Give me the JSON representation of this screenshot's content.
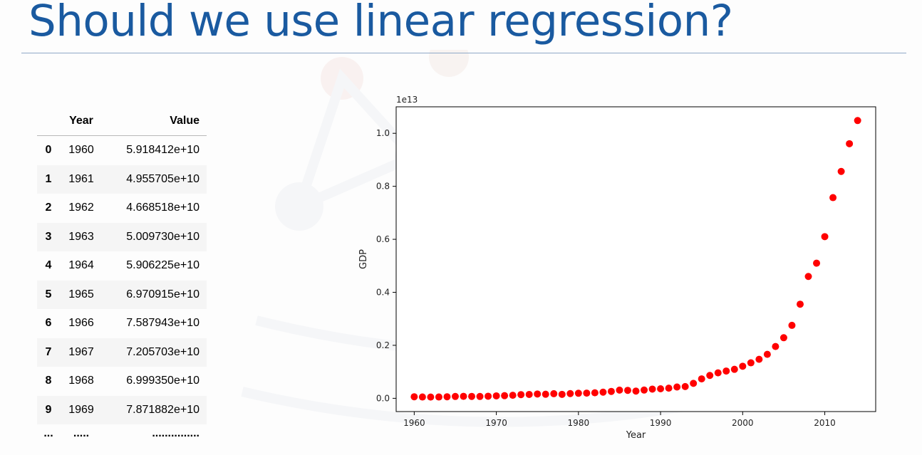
{
  "slide": {
    "title": "Should we use linear regression?"
  },
  "table": {
    "columns": [
      "",
      "Year",
      "Value"
    ],
    "rows": [
      {
        "idx": "0",
        "year": "1960",
        "value": "5.918412e+10"
      },
      {
        "idx": "1",
        "year": "1961",
        "value": "4.955705e+10"
      },
      {
        "idx": "2",
        "year": "1962",
        "value": "4.668518e+10"
      },
      {
        "idx": "3",
        "year": "1963",
        "value": "5.009730e+10"
      },
      {
        "idx": "4",
        "year": "1964",
        "value": "5.906225e+10"
      },
      {
        "idx": "5",
        "year": "1965",
        "value": "6.970915e+10"
      },
      {
        "idx": "6",
        "year": "1966",
        "value": "7.587943e+10"
      },
      {
        "idx": "7",
        "year": "1967",
        "value": "7.205703e+10"
      },
      {
        "idx": "8",
        "year": "1968",
        "value": "6.999350e+10"
      },
      {
        "idx": "9",
        "year": "1969",
        "value": "7.871882e+10"
      }
    ],
    "ellipsis": {
      "idx": "...",
      "year": ".....",
      "value": "..............."
    }
  },
  "chart_data": {
    "type": "scatter",
    "title": "",
    "xlabel": "Year",
    "ylabel": "GDP",
    "offset_label": "1e13",
    "xlim": [
      1957.8,
      2016.2
    ],
    "ylim": [
      -0.05,
      1.1
    ],
    "xticks": [
      1960,
      1970,
      1980,
      1990,
      2000,
      2010
    ],
    "yticks": [
      0.0,
      0.2,
      0.4,
      0.6,
      0.8,
      1.0
    ],
    "ytick_labels": [
      "0.0",
      "0.2",
      "0.4",
      "0.6",
      "0.8",
      "1.0"
    ],
    "marker_color": "#ff0000",
    "grid": false,
    "x": [
      1960,
      1961,
      1962,
      1963,
      1964,
      1965,
      1966,
      1967,
      1968,
      1969,
      1970,
      1971,
      1972,
      1973,
      1974,
      1975,
      1976,
      1977,
      1978,
      1979,
      1980,
      1981,
      1982,
      1983,
      1984,
      1985,
      1986,
      1987,
      1988,
      1989,
      1990,
      1991,
      1992,
      1993,
      1994,
      1995,
      1996,
      1997,
      1998,
      1999,
      2000,
      2001,
      2002,
      2003,
      2004,
      2005,
      2006,
      2007,
      2008,
      2009,
      2010,
      2011,
      2012,
      2013,
      2014
    ],
    "y": [
      0.0059,
      0.005,
      0.0047,
      0.005,
      0.0059,
      0.007,
      0.0076,
      0.0072,
      0.007,
      0.0079,
      0.0092,
      0.01,
      0.0114,
      0.0139,
      0.0146,
      0.0163,
      0.0154,
      0.0174,
      0.0149,
      0.0178,
      0.0191,
      0.0196,
      0.0209,
      0.0232,
      0.026,
      0.0309,
      0.0301,
      0.0273,
      0.0312,
      0.0348,
      0.036,
      0.0383,
      0.0427,
      0.0444,
      0.0564,
      0.0734,
      0.0864,
      0.0961,
      0.1029,
      0.1094,
      0.1211,
      0.1339,
      0.1471,
      0.166,
      0.1955,
      0.2286,
      0.2753,
      0.3552,
      0.4598,
      0.51,
      0.6101,
      0.7573,
      0.8561,
      0.9607,
      1.0482
    ]
  }
}
